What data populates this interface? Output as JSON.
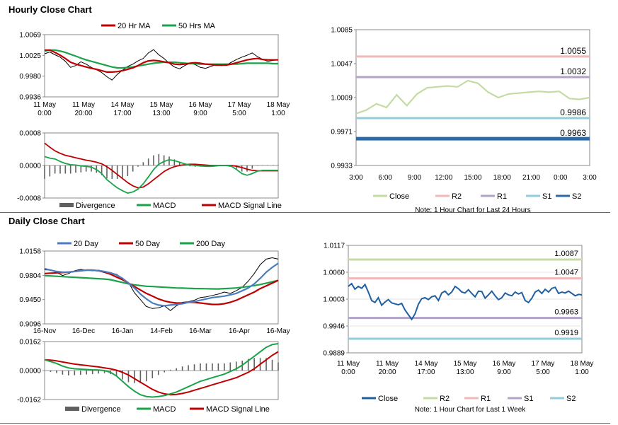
{
  "sections": {
    "hourly_title": "Hourly Close Chart",
    "daily_title": "Daily Close Chart"
  },
  "chart_data": [
    {
      "id": "hourly_price",
      "type": "line",
      "title": "",
      "legend": [
        "20 Hr MA",
        "50 Hrs MA"
      ],
      "ylim": [
        0.9936,
        1.0069
      ],
      "yticks": [
        "1.0069",
        "1.0025",
        "0.9980",
        "0.9936"
      ],
      "xticks": [
        [
          "11 May",
          "0:00"
        ],
        [
          "11 May",
          "20:00"
        ],
        [
          "14 May",
          "17:00"
        ],
        [
          "15 May",
          "13:00"
        ],
        [
          "16 May",
          "9:00"
        ],
        [
          "17 May",
          "5:00"
        ],
        [
          "18 May",
          "1:00"
        ]
      ],
      "series": [
        {
          "name": "Close",
          "color": "#000000",
          "values": [
            1.0028,
            1.0032,
            1.0026,
            1.0021,
            1.0012,
            0.9999,
            1.0003,
            1.0011,
            1.0006,
            0.9999,
            0.9994,
            0.9988,
            0.9979,
            0.9972,
            0.9984,
            0.9993,
            1.0001,
            1.0006,
            1.0013,
            1.0018,
            1.003,
            1.0037,
            1.0026,
            1.0018,
            1.0008,
            1.0,
            0.9996,
            1.0003,
            1.0008,
            1.0005,
            0.9999,
            0.9997,
            1.0001,
            1.0005,
            1.0003,
            1.0004,
            1.001,
            1.0016,
            1.0021,
            1.0025,
            1.003,
            1.0022,
            1.0016,
            1.0012,
            1.0014,
            1.0015
          ]
        },
        {
          "name": "20 Hr MA",
          "color": "#c00000",
          "values": [
            1.0036,
            1.0036,
            1.0031,
            1.0025,
            1.0018,
            1.001,
            1.0006,
            1.0003,
            1.0,
            0.9997,
            0.9995,
            0.9992,
            0.9989,
            0.9989,
            0.999,
            0.9992,
            0.9995,
            0.9998,
            1.0003,
            1.0009,
            1.0013,
            1.0014,
            1.0013,
            1.0011,
            1.0009,
            1.0006,
            1.0005,
            1.0006,
            1.0008,
            1.0009,
            1.0008,
            1.0006,
            1.0005,
            1.0004,
            1.0004,
            1.0004,
            1.0006,
            1.0009,
            1.0012,
            1.0015,
            1.0017,
            1.0018,
            1.0016,
            1.0015,
            1.0015,
            1.0015
          ]
        },
        {
          "name": "50 Hrs MA",
          "color": "#1aa34a",
          "values": [
            1.0034,
            1.0036,
            1.0036,
            1.0034,
            1.0031,
            1.0027,
            1.0023,
            1.0019,
            1.0015,
            1.0012,
            1.0009,
            1.0006,
            1.0003,
            1.0,
            0.9998,
            0.9998,
            0.9999,
            1.0,
            1.0002,
            1.0004,
            1.0006,
            1.0008,
            1.0009,
            1.001,
            1.001,
            1.001,
            1.0009,
            1.0008,
            1.0007,
            1.0007,
            1.0006,
            1.0006,
            1.0006,
            1.0006,
            1.0006,
            1.0006,
            1.0006,
            1.0006,
            1.0007,
            1.0008,
            1.0008,
            1.0008,
            1.0008,
            1.0008,
            1.0007,
            1.0007
          ]
        }
      ]
    },
    {
      "id": "hourly_macd",
      "type": "line",
      "legend": [
        "Divergence",
        "MACD",
        "MACD Signal Line"
      ],
      "ylim": [
        -0.0008,
        0.0008
      ],
      "yticks": [
        "0.0008",
        "0.0000",
        "-0.0008"
      ],
      "series": [
        {
          "name": "MACD",
          "color": "#1aa34a",
          "values": [
            0.00022,
            0.00018,
            0.00016,
            0.0001,
            5e-05,
            2e-05,
            1e-05,
            -1e-05,
            -2e-05,
            -4e-05,
            -0.0001,
            -0.0002,
            -0.00035,
            -0.00045,
            -0.00055,
            -0.00062,
            -0.00068,
            -0.00065,
            -0.00058,
            -0.00045,
            -0.00028,
            -0.0001,
            3e-05,
            0.0001,
            0.00014,
            0.00012,
            8e-05,
            4e-05,
            1e-05,
            0.0,
            -1e-05,
            -2e-05,
            -2e-05,
            -1e-05,
            0.0,
            0.0,
            -2e-05,
            -0.0001,
            -0.0002,
            -0.00024,
            -0.0002,
            -0.00014,
            -0.00012,
            -0.00012,
            -0.00012,
            -0.00012
          ]
        },
        {
          "name": "MACD Signal Line",
          "color": "#c00000",
          "values": [
            0.00055,
            0.00045,
            0.00036,
            0.0003,
            0.00025,
            0.00022,
            0.00019,
            0.00016,
            0.00013,
            0.00011,
            8e-05,
            4e-05,
            -3e-05,
            -0.00012,
            -0.00022,
            -0.00032,
            -0.00042,
            -0.0005,
            -0.00055,
            -0.00053,
            -0.00045,
            -0.00035,
            -0.00025,
            -0.00015,
            -8e-05,
            -3e-05,
            0.0,
            2e-05,
            3e-05,
            3e-05,
            2e-05,
            1e-05,
            0.0,
            0.0,
            0.0,
            0.0,
            0.0,
            -2e-05,
            -5e-05,
            -9e-05,
            -0.00012,
            -0.00013,
            -0.00013,
            -0.00013,
            -0.00013,
            -0.00013
          ]
        },
        {
          "name": "Divergence",
          "color": "#606060",
          "values": [
            -0.00033,
            -0.00027,
            -0.0002,
            -0.0002,
            -0.0002,
            -0.0002,
            -0.00018,
            -0.00017,
            -0.00015,
            -0.00015,
            -0.00018,
            -0.00024,
            -0.00032,
            -0.00033,
            -0.00033,
            -0.0003,
            -0.00026,
            -0.00015,
            -3e-05,
            8e-05,
            0.00017,
            0.00025,
            0.00028,
            0.00025,
            0.00022,
            0.00015,
            8e-05,
            2e-05,
            -2e-05,
            -3e-05,
            -3e-05,
            -3e-05,
            -2e-05,
            -1e-05,
            0.0,
            0.0,
            -2e-05,
            -8e-05,
            -0.00015,
            -0.00015,
            -8e-05,
            -1e-05,
            1e-05,
            1e-05,
            1e-05,
            1e-05
          ]
        }
      ]
    },
    {
      "id": "hourly_24h",
      "type": "line",
      "note": "Note: 1 Hour Chart for Last 24 Hours",
      "ylim": [
        0.9933,
        1.0085
      ],
      "yticks": [
        "1.0085",
        "1.0047",
        "1.0009",
        "0.9971",
        "0.9933"
      ],
      "xticks": [
        "3:00",
        "6:00",
        "9:00",
        "12:00",
        "15:00",
        "18:00",
        "21:00",
        "0:00",
        "3:00"
      ],
      "legend": [
        "Close",
        "R2",
        "R1",
        "S1",
        "S2"
      ],
      "levels": [
        {
          "name": "R2",
          "value": 1.0055,
          "label": "1.0055",
          "color": "#f2b8b8"
        },
        {
          "name": "R1",
          "value": 1.0032,
          "label": "1.0032",
          "color": "#b3a2c7"
        },
        {
          "name": "S1",
          "value": 0.9986,
          "label": "0.9986",
          "color": "#93cddd"
        },
        {
          "name": "S2",
          "value": 0.9963,
          "label": "0.9963",
          "color": "#2e6aa8"
        }
      ],
      "series": [
        {
          "name": "Close",
          "color": "#c4dca4",
          "values": [
            0.9991,
            0.9995,
            1.0002,
            0.9998,
            1.0012,
            1.0,
            1.0013,
            1.002,
            1.0021,
            1.0022,
            1.0021,
            1.0028,
            1.0025,
            1.0015,
            1.0009,
            1.0013,
            1.0014,
            1.0015,
            1.0016,
            1.0015,
            1.0016,
            1.0008,
            1.0007,
            1.0009
          ]
        }
      ]
    },
    {
      "id": "daily_price",
      "type": "line",
      "legend": [
        "20 Day",
        "50 Day",
        "200 Day"
      ],
      "ylim": [
        0.9096,
        1.0158
      ],
      "yticks": [
        "1.0158",
        "0.9804",
        "0.9450",
        "0.9096"
      ],
      "xticks": [
        "16-Nov",
        "16-Dec",
        "16-Jan",
        "14-Feb",
        "16-Mar",
        "16-Apr",
        "16-May"
      ],
      "series": [
        {
          "name": "Close",
          "color": "#000000",
          "values": [
            0.9885,
            0.988,
            0.985,
            0.98,
            0.983,
            0.987,
            0.989,
            0.988,
            0.987,
            0.988,
            0.986,
            0.984,
            0.982,
            0.976,
            0.97,
            0.955,
            0.945,
            0.935,
            0.932,
            0.933,
            0.936,
            0.929,
            0.936,
            0.941,
            0.942,
            0.944,
            0.948,
            0.949,
            0.951,
            0.953,
            0.956,
            0.954,
            0.958,
            0.963,
            0.972,
            0.983,
            0.996,
            1.004,
            1.006,
            1.004
          ]
        },
        {
          "name": "20 Day",
          "color": "#4a7dbf",
          "values": [
            0.99,
            0.988,
            0.986,
            0.985,
            0.985,
            0.986,
            0.987,
            0.988,
            0.988,
            0.987,
            0.986,
            0.984,
            0.981,
            0.976,
            0.969,
            0.962,
            0.953,
            0.946,
            0.94,
            0.937,
            0.936,
            0.937,
            0.938,
            0.939,
            0.941,
            0.942,
            0.944,
            0.946,
            0.948,
            0.949,
            0.95,
            0.952,
            0.954,
            0.958,
            0.962,
            0.968,
            0.976,
            0.985,
            0.992,
            0.998
          ]
        },
        {
          "name": "50 Day",
          "color": "#c00000",
          "values": [
            0.983,
            0.9835,
            0.984,
            0.9845,
            0.985,
            0.986,
            0.987,
            0.988,
            0.988,
            0.987,
            0.985,
            0.982,
            0.978,
            0.974,
            0.969,
            0.964,
            0.959,
            0.954,
            0.95,
            0.946,
            0.943,
            0.941,
            0.94,
            0.94,
            0.941,
            0.941,
            0.94,
            0.939,
            0.938,
            0.938,
            0.939,
            0.941,
            0.944,
            0.948,
            0.952,
            0.956,
            0.961,
            0.965,
            0.969,
            0.973
          ]
        },
        {
          "name": "200 Day",
          "color": "#1aa34a",
          "values": [
            0.98,
            0.9795,
            0.979,
            0.9785,
            0.978,
            0.9775,
            0.977,
            0.9765,
            0.976,
            0.9755,
            0.975,
            0.974,
            0.972,
            0.97,
            0.968,
            0.9665,
            0.9655,
            0.9645,
            0.964,
            0.9635,
            0.963,
            0.9625,
            0.962,
            0.9618,
            0.9615,
            0.9612,
            0.961,
            0.9608,
            0.9606,
            0.9605,
            0.961,
            0.9615,
            0.962,
            0.963,
            0.964,
            0.9655,
            0.967,
            0.969,
            0.971,
            0.973
          ]
        }
      ]
    },
    {
      "id": "daily_macd",
      "type": "line",
      "legend": [
        "Divergence",
        "MACD",
        "MACD Signal Line"
      ],
      "ylim": [
        -0.0162,
        0.0162
      ],
      "yticks": [
        "0.0162",
        "0.0000",
        "-0.0162"
      ],
      "series": [
        {
          "name": "MACD",
          "color": "#1aa34a",
          "values": [
            0.006,
            0.005,
            0.004,
            0.0025,
            0.0015,
            0.001,
            0.0008,
            0.0006,
            0.0004,
            0.0003,
            0.0,
            -0.001,
            -0.003,
            -0.006,
            -0.009,
            -0.0115,
            -0.0135,
            -0.0145,
            -0.0148,
            -0.0145,
            -0.014,
            -0.013,
            -0.012,
            -0.0105,
            -0.009,
            -0.0075,
            -0.006,
            -0.005,
            -0.004,
            -0.003,
            -0.002,
            -0.0005,
            0.001,
            0.003,
            0.0055,
            0.008,
            0.0105,
            0.013,
            0.0145,
            0.015
          ]
        },
        {
          "name": "MACD Signal Line",
          "color": "#c00000",
          "values": [
            0.006,
            0.0058,
            0.0054,
            0.0048,
            0.0042,
            0.0036,
            0.0032,
            0.0028,
            0.0024,
            0.002,
            0.0015,
            0.001,
            0.0002,
            -0.001,
            -0.0025,
            -0.0045,
            -0.0065,
            -0.0085,
            -0.0105,
            -0.012,
            -0.013,
            -0.0135,
            -0.0133,
            -0.0128,
            -0.012,
            -0.011,
            -0.01,
            -0.009,
            -0.008,
            -0.007,
            -0.006,
            -0.005,
            -0.004,
            -0.0025,
            -0.001,
            0.001,
            0.0035,
            0.006,
            0.0085,
            0.0105
          ]
        },
        {
          "name": "Divergence",
          "color": "#606060",
          "values": [
            0.0,
            -0.0008,
            -0.0014,
            -0.0023,
            -0.0027,
            -0.0026,
            -0.0024,
            -0.0022,
            -0.002,
            -0.0017,
            -0.0015,
            -0.002,
            -0.0032,
            -0.005,
            -0.0065,
            -0.007,
            -0.007,
            -0.006,
            -0.0043,
            -0.0025,
            -0.001,
            0.0005,
            0.0013,
            0.0023,
            0.003,
            0.0035,
            0.004,
            0.004,
            0.004,
            0.004,
            0.004,
            0.0045,
            0.005,
            0.0055,
            0.0065,
            0.007,
            0.007,
            0.007,
            0.006,
            0.0045
          ]
        }
      ]
    },
    {
      "id": "daily_week",
      "type": "line",
      "note": "Note: 1 Hour Chart for Last 1 Week",
      "ylim": [
        0.9889,
        1.0117
      ],
      "yticks": [
        "1.0117",
        "1.0060",
        "1.0003",
        "0.9946",
        "0.9889"
      ],
      "xticks": [
        [
          "11 May",
          "0:00"
        ],
        [
          "11 May",
          "20:00"
        ],
        [
          "14 May",
          "17:00"
        ],
        [
          "15 May",
          "13:00"
        ],
        [
          "16 May",
          "9:00"
        ],
        [
          "17 May",
          "5:00"
        ],
        [
          "18 May",
          "1:00"
        ]
      ],
      "legend": [
        "Close",
        "R2",
        "R1",
        "S1",
        "S2"
      ],
      "levels": [
        {
          "name": "R2",
          "value": 1.0087,
          "label": "1.0087",
          "color": "#c4dca4"
        },
        {
          "name": "R1",
          "value": 1.0047,
          "label": "1.0047",
          "color": "#f2b8b8"
        },
        {
          "name": "S1",
          "value": 0.9963,
          "label": "0.9963",
          "color": "#b3a2c7"
        },
        {
          "name": "S2",
          "value": 0.9919,
          "label": "0.9919",
          "color": "#93cddd"
        }
      ],
      "series": [
        {
          "name": "Close",
          "color": "#1f5fa3",
          "values": [
            1.003,
            1.0036,
            1.0024,
            1.003,
            1.0026,
            1.0034,
            1.0018,
            1.0,
            0.9996,
            1.0006,
            0.999,
            0.9997,
            1.0002,
            0.9995,
            0.9993,
            0.9991,
            0.9994,
            0.998,
            0.997,
            0.996,
            0.9972,
            0.9992,
            1.0004,
            1.0006,
            1.0002,
            1.0008,
            1.001,
            1.0,
            1.0016,
            1.002,
            1.0012,
            1.0018,
            1.003,
            1.0025,
            1.0018,
            1.0016,
            1.0023,
            1.0015,
            1.0008,
            1.002,
            1.0019,
            1.0005,
            1.0012,
            1.002,
            1.001,
            1.0002,
            1.0006,
            1.0016,
            1.0012,
            1.001,
            1.0018,
            1.0014,
            1.0017,
            1.0,
            0.9996,
            1.0005,
            1.0018,
            1.0022,
            1.0015,
            1.0024,
            1.0018,
            1.0026,
            1.0028,
            1.0015,
            1.0018,
            1.0016,
            1.002,
            1.0015,
            1.001,
            1.0013,
            1.0012
          ]
        }
      ]
    }
  ]
}
